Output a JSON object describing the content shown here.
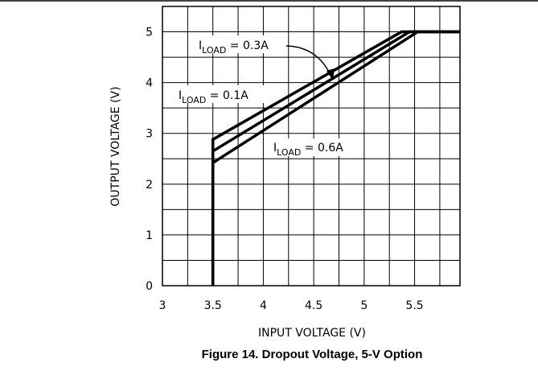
{
  "chart_data": {
    "type": "line",
    "title": "Figure 14. Dropout Voltage, 5-V Option",
    "x_label": "INPUT VOLTAGE (V)",
    "y_label": "OUTPUT VOLTAGE (V)",
    "xlim": [
      3,
      5.95
    ],
    "xticks": [
      3,
      3.5,
      4,
      4.5,
      5,
      5.5
    ],
    "ylim": [
      0,
      5.5
    ],
    "yticks": [
      0,
      1,
      2,
      3,
      4,
      5
    ],
    "grid": true,
    "series": [
      {
        "color": "#000000",
        "x": [
          3.5,
          3.5,
          5.37,
          5.95
        ],
        "values": [
          0,
          2.88,
          5,
          5
        ]
      },
      {
        "color": "#000000",
        "x": [
          3.5,
          3.5,
          5.45,
          5.95
        ],
        "values": [
          0,
          2.65,
          5,
          5
        ]
      },
      {
        "color": "#000000",
        "x": [
          3.5,
          3.5,
          5.53,
          5.95
        ],
        "values": [
          0,
          2.42,
          5,
          5
        ]
      }
    ],
    "annotations": [
      {
        "main": "I",
        "sub": "LOAD",
        "rest": " = 0.1A"
      },
      {
        "main": "I",
        "sub": "LOAD",
        "rest": " = 0.3A"
      },
      {
        "main": "I",
        "sub": "LOAD",
        "rest": " = 0.6A"
      }
    ]
  }
}
